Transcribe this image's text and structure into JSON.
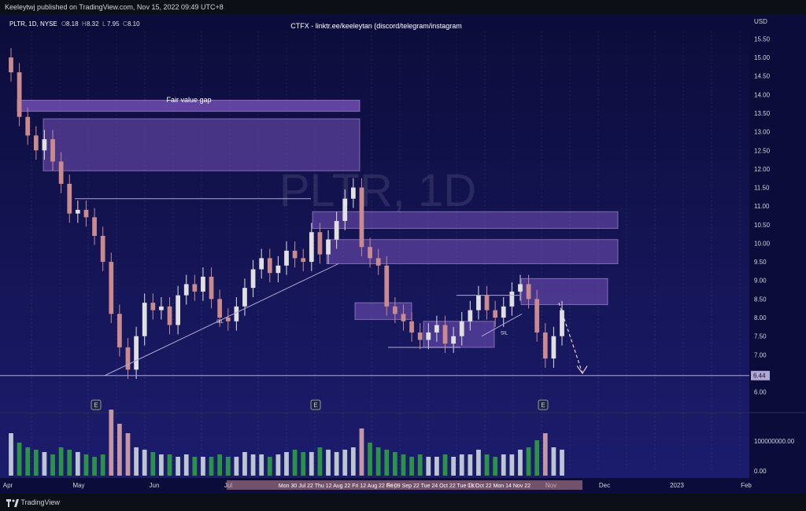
{
  "header": {
    "publish_line": "Keeleytwj published on TradingView.com, Nov 15, 2022 09:49 UTC+8",
    "symbol_line": "PLTR, 1D, NYSE",
    "ohlc": [
      {
        "k": "O",
        "v": "8.18"
      },
      {
        "k": "H",
        "v": "8.32"
      },
      {
        "k": "L",
        "v": "7.95"
      },
      {
        "k": "C",
        "v": "8.10"
      }
    ],
    "promo": "CTFX - linktr.ee/keeleytan (discord/telegram/instagram"
  },
  "watermark": {
    "text": "PLTR, 1D"
  },
  "colors": {
    "up": "#e0e0e0",
    "down": "#c98b8e",
    "volume": "#2ea043",
    "zone": "#7e57c2",
    "bg_top": "#0c0c3a",
    "bg_bottom": "#1c1c6e",
    "line": "#b0a7d4"
  },
  "axis": {
    "currency": "USD",
    "price_ticks": [
      "15.50",
      "15.00",
      "14.50",
      "14.00",
      "13.50",
      "13.00",
      "12.50",
      "12.00",
      "11.50",
      "11.00",
      "10.50",
      "10.00",
      "9.50",
      "9.00",
      "8.50",
      "8.00",
      "7.50",
      "7.00",
      "6.50",
      "6.00"
    ],
    "price_range": [
      5.8,
      15.7
    ],
    "current_price_label": "6.44",
    "volume_ticks": [
      "100000000.00",
      "0.00"
    ],
    "time_ticks": [
      "Apr",
      "May",
      "Jun",
      "Jul",
      "Sep",
      "Oct",
      "Nov",
      "Dec",
      "2023",
      "Feb"
    ]
  },
  "annotations": {
    "fair_value_gap": "Fair value gap",
    "earnings_marker": "E",
    "trend_label_1": "SIL",
    "trend_label_2": "SIL",
    "date_strip": "Mon 30 Jul 22   Thu 12 Aug 22   Fri 12 Aug 22   Fri 09 Sep 22   Tue 24 Oct 22   Tue 18 Oct 22   Mon 14 Nov 22"
  },
  "chart_data": {
    "type": "candlestick",
    "title": "PLTR, 1D, NYSE",
    "ylabel": "USD",
    "ylim": [
      5.8,
      15.7
    ],
    "x_categories": [
      "Apr",
      "May",
      "Jun",
      "Jul",
      "Aug",
      "Sep",
      "Oct",
      "Nov"
    ],
    "zones": [
      {
        "label": "Fair value gap",
        "price_low": 13.55,
        "price_high": 13.85
      },
      {
        "label": "",
        "price_low": 11.95,
        "price_high": 13.35
      },
      {
        "label": "",
        "price_low": 10.4,
        "price_high": 10.85
      },
      {
        "label": "",
        "price_low": 9.45,
        "price_high": 10.1
      },
      {
        "label": "",
        "price_low": 8.35,
        "price_high": 9.05
      },
      {
        "label": "",
        "price_low": 7.95,
        "price_high": 8.4
      },
      {
        "label": "",
        "price_low": 7.2,
        "price_high": 7.9
      }
    ],
    "levels": [
      {
        "price": 6.44,
        "label": "6.44"
      },
      {
        "price": 11.2,
        "label": ""
      }
    ],
    "series_close": [
      14.6,
      13.4,
      12.9,
      12.5,
      12.8,
      12.2,
      11.6,
      10.8,
      10.9,
      10.7,
      10.2,
      9.5,
      8.1,
      7.2,
      6.6,
      7.5,
      8.4,
      8.2,
      8.3,
      7.8,
      8.6,
      8.9,
      8.7,
      9.1,
      8.5,
      8.0,
      7.9,
      8.3,
      8.8,
      9.3,
      9.6,
      9.2,
      9.4,
      9.8,
      9.6,
      9.5,
      10.3,
      9.7,
      10.1,
      10.6,
      11.2,
      11.5,
      9.9,
      9.6,
      9.4,
      8.3,
      8.1,
      7.9,
      7.6,
      7.4,
      7.6,
      7.8,
      7.3,
      7.5,
      7.9,
      8.2,
      8.6,
      8.2,
      8.0,
      8.3,
      8.7,
      8.9,
      8.5,
      7.6,
      6.9,
      7.5,
      8.2
    ],
    "volume_approx_millions": [
      90,
      70,
      60,
      55,
      50,
      45,
      60,
      55,
      50,
      45,
      40,
      45,
      140,
      110,
      90,
      60,
      55,
      50,
      45,
      45,
      40,
      45,
      40,
      40,
      40,
      45,
      40,
      40,
      50,
      45,
      45,
      40,
      45,
      50,
      55,
      50,
      50,
      60,
      55,
      50,
      55,
      60,
      100,
      70,
      60,
      55,
      50,
      45,
      40,
      45,
      40,
      40,
      45,
      40,
      45,
      45,
      55,
      45,
      40,
      45,
      45,
      55,
      60,
      75,
      90,
      60,
      55
    ]
  }
}
